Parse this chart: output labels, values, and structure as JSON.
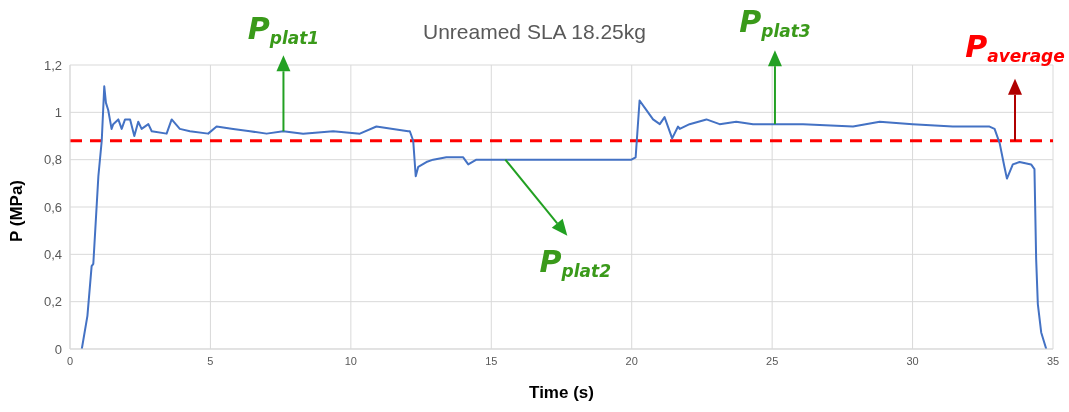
{
  "chart_data": {
    "type": "line",
    "title": "Unreamed SLA 18.25kg",
    "xlabel": "Time (s)",
    "ylabel": "P (MPa)",
    "xlim": [
      0,
      35
    ],
    "xticks": [
      0,
      5,
      10,
      15,
      20,
      25,
      30,
      35
    ],
    "ylim": [
      0,
      1.2
    ],
    "yticks": [
      0,
      {
        "value": 0.2,
        "label": "0,2"
      },
      {
        "value": 0.4,
        "label": "0,4"
      },
      {
        "value": 0.6,
        "label": "0,6"
      },
      {
        "value": 0.8,
        "label": "0,8"
      },
      1,
      {
        "value": 1.2,
        "label": "1,2"
      }
    ],
    "grid": true,
    "marker": "none",
    "line_style": "solid",
    "series": [
      {
        "color": "#4472c4",
        "x": [
          0.42,
          0.62,
          0.77,
          0.83,
          1.01,
          1.13,
          1.22,
          1.28,
          1.36,
          1.48,
          1.54,
          1.72,
          1.84,
          1.96,
          2.14,
          2.29,
          2.43,
          2.55,
          2.79,
          2.91,
          3.44,
          3.62,
          3.91,
          4.27,
          4.92,
          5.22,
          5.81,
          6.41,
          7.0,
          7.59,
          8.3,
          9.37,
          10.32,
          10.91,
          11.5,
          12.04,
          12.1,
          12.22,
          12.31,
          12.4,
          12.69,
          12.93,
          13.4,
          14.0,
          14.18,
          14.47,
          15.54,
          16.96,
          18.15,
          19.34,
          19.99,
          20.14,
          20.28,
          20.46,
          20.76,
          21.0,
          21.17,
          21.44,
          21.65,
          21.71,
          22.06,
          22.66,
          23.13,
          23.72,
          24.32,
          25.09,
          26.1,
          27.88,
          28.83,
          30.0,
          31.43,
          32.74,
          32.92,
          33.1,
          33.27,
          33.36,
          33.57,
          33.81,
          34.22,
          34.34,
          34.4,
          34.46,
          34.58,
          34.76
        ],
        "values": [
          0,
          0.14,
          0.35,
          0.36,
          0.73,
          0.88,
          1.11,
          1.04,
          1.01,
          0.93,
          0.95,
          0.97,
          0.93,
          0.97,
          0.97,
          0.9,
          0.96,
          0.93,
          0.95,
          0.92,
          0.91,
          0.97,
          0.93,
          0.92,
          0.91,
          0.94,
          0.93,
          0.92,
          0.91,
          0.92,
          0.91,
          0.92,
          0.91,
          0.94,
          0.93,
          0.92,
          0.92,
          0.88,
          0.73,
          0.77,
          0.79,
          0.8,
          0.81,
          0.81,
          0.78,
          0.8,
          0.8,
          0.8,
          0.8,
          0.8,
          0.8,
          0.81,
          1.05,
          1.02,
          0.97,
          0.95,
          0.98,
          0.89,
          0.94,
          0.93,
          0.95,
          0.97,
          0.95,
          0.96,
          0.95,
          0.95,
          0.95,
          0.94,
          0.96,
          0.95,
          0.94,
          0.94,
          0.93,
          0.87,
          0.77,
          0.72,
          0.78,
          0.79,
          0.78,
          0.76,
          0.38,
          0.19,
          0.07,
          0
        ]
      }
    ],
    "ref_lines": [
      {
        "axis": "y",
        "value": 0.88,
        "label": "P$_{average}$",
        "color": "#ff0000",
        "line_style": "dashed"
      }
    ],
    "annotations": [
      {
        "text": "P$_{plat1}$",
        "x": 7.6,
        "y": 0.92
      },
      {
        "text": "P$_{plat2}$",
        "x": 15.5,
        "y": 0.8
      },
      {
        "text": "P$_{plat3}$",
        "x": 25.1,
        "y": 0.95
      }
    ]
  }
}
